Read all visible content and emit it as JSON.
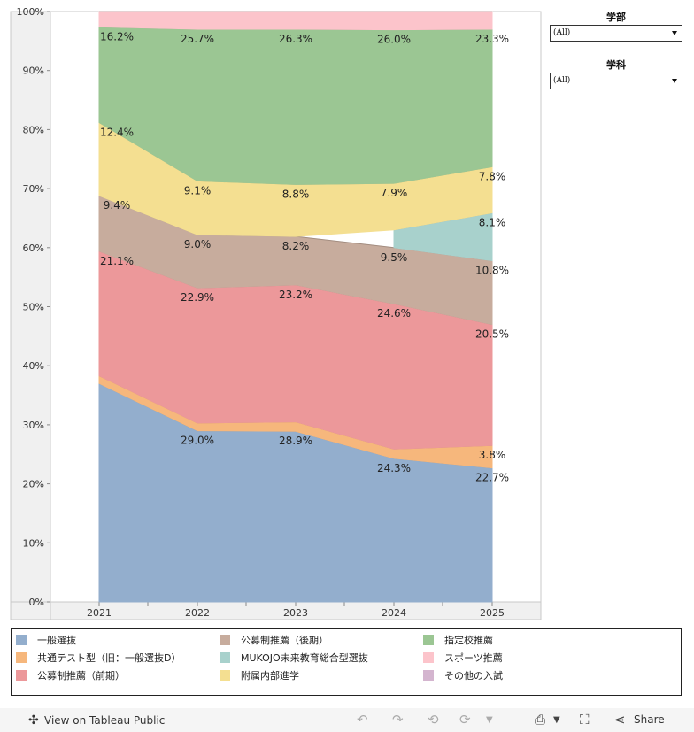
{
  "chart_data": {
    "type": "area",
    "stacked": "percent",
    "categories": [
      "2021",
      "2022",
      "2023",
      "2024",
      "2025"
    ],
    "y_ticks": [
      "0%",
      "10%",
      "20%",
      "30%",
      "40%",
      "50%",
      "60%",
      "70%",
      "80%",
      "90%",
      "100%"
    ],
    "ylim": [
      0,
      100
    ],
    "grid": false,
    "series": [
      {
        "name": "一般選抜",
        "color": "#93aecd",
        "values": [
          37.0,
          29.0,
          28.9,
          24.3,
          22.7
        ],
        "labels": [
          "",
          "29.0%",
          "28.9%",
          "24.3%",
          "22.7%"
        ]
      },
      {
        "name": "共通テスト型（旧：一般選抜D）",
        "color": "#f6b77c",
        "values": [
          1.3,
          1.3,
          1.6,
          1.6,
          3.8
        ],
        "labels": [
          "",
          "",
          "",
          "",
          "3.8%"
        ]
      },
      {
        "name": "公募制推薦（前期）",
        "color": "#ec989a",
        "values": [
          21.1,
          22.9,
          23.2,
          24.6,
          20.5
        ],
        "labels": [
          "21.1%",
          "22.9%",
          "23.2%",
          "24.6%",
          "20.5%"
        ]
      },
      {
        "name": "公募制推薦（後期）",
        "color": "#c7ac9d",
        "values": [
          9.4,
          9.0,
          8.2,
          9.5,
          10.8
        ],
        "labels": [
          "9.4%",
          "9.0%",
          "8.2%",
          "9.5%",
          "10.8%"
        ]
      },
      {
        "name": "MUKOJO未来教育総合型選抜",
        "color": "#a8d1cc",
        "values": [
          null,
          null,
          null,
          3.0,
          8.1
        ],
        "labels": [
          "",
          "",
          "",
          "",
          "8.1%"
        ]
      },
      {
        "name": "附属内部進学",
        "color": "#f4df91",
        "values": [
          12.4,
          9.1,
          8.8,
          7.9,
          7.8
        ],
        "labels": [
          "12.4%",
          "9.1%",
          "8.8%",
          "7.9%",
          "7.8%"
        ]
      },
      {
        "name": "指定校推薦",
        "color": "#9bc693",
        "values": [
          16.2,
          25.7,
          26.3,
          26.0,
          23.3
        ],
        "labels": [
          "16.2%",
          "25.7%",
          "26.3%",
          "26.0%",
          "23.3%"
        ]
      },
      {
        "name": "スポーツ推薦",
        "color": "#fcc4cb",
        "values": [
          2.6,
          3.0,
          3.0,
          3.1,
          3.0
        ],
        "labels": [
          "",
          "",
          "",
          "",
          ""
        ]
      },
      {
        "name": "その他の入試",
        "color": "#d4b5cf",
        "values": [
          null,
          null,
          null,
          null,
          null
        ],
        "labels": [
          "",
          "",
          "",
          "",
          ""
        ]
      }
    ],
    "legend_placement": "bottom"
  },
  "filters": [
    {
      "title": "学部",
      "value": "(All)"
    },
    {
      "title": "学科",
      "value": "(All)"
    }
  ],
  "legend": [
    {
      "label": "一般選抜",
      "color": "#93aecd"
    },
    {
      "label": "公募制推薦（後期）",
      "color": "#c7ac9d"
    },
    {
      "label": "指定校推薦",
      "color": "#9bc693"
    },
    {
      "label": "共通テスト型（旧：一般選抜D）",
      "color": "#f6b77c"
    },
    {
      "label": "MUKOJO未来教育総合型選抜",
      "color": "#a8d1cc"
    },
    {
      "label": "スポーツ推薦",
      "color": "#fcc4cb"
    },
    {
      "label": "公募制推薦（前期）",
      "color": "#ec989a"
    },
    {
      "label": "附属内部進学",
      "color": "#f4df91"
    },
    {
      "label": "その他の入試",
      "color": "#d4b5cf"
    }
  ],
  "footer": {
    "view_label": "View on Tableau Public",
    "share_label": "Share",
    "icons": [
      "tableau-logo-icon",
      "undo-icon",
      "redo-icon",
      "revert-icon",
      "refresh-icon",
      "pause-icon",
      "download-icon",
      "fullscreen-icon",
      "share-icon"
    ]
  }
}
